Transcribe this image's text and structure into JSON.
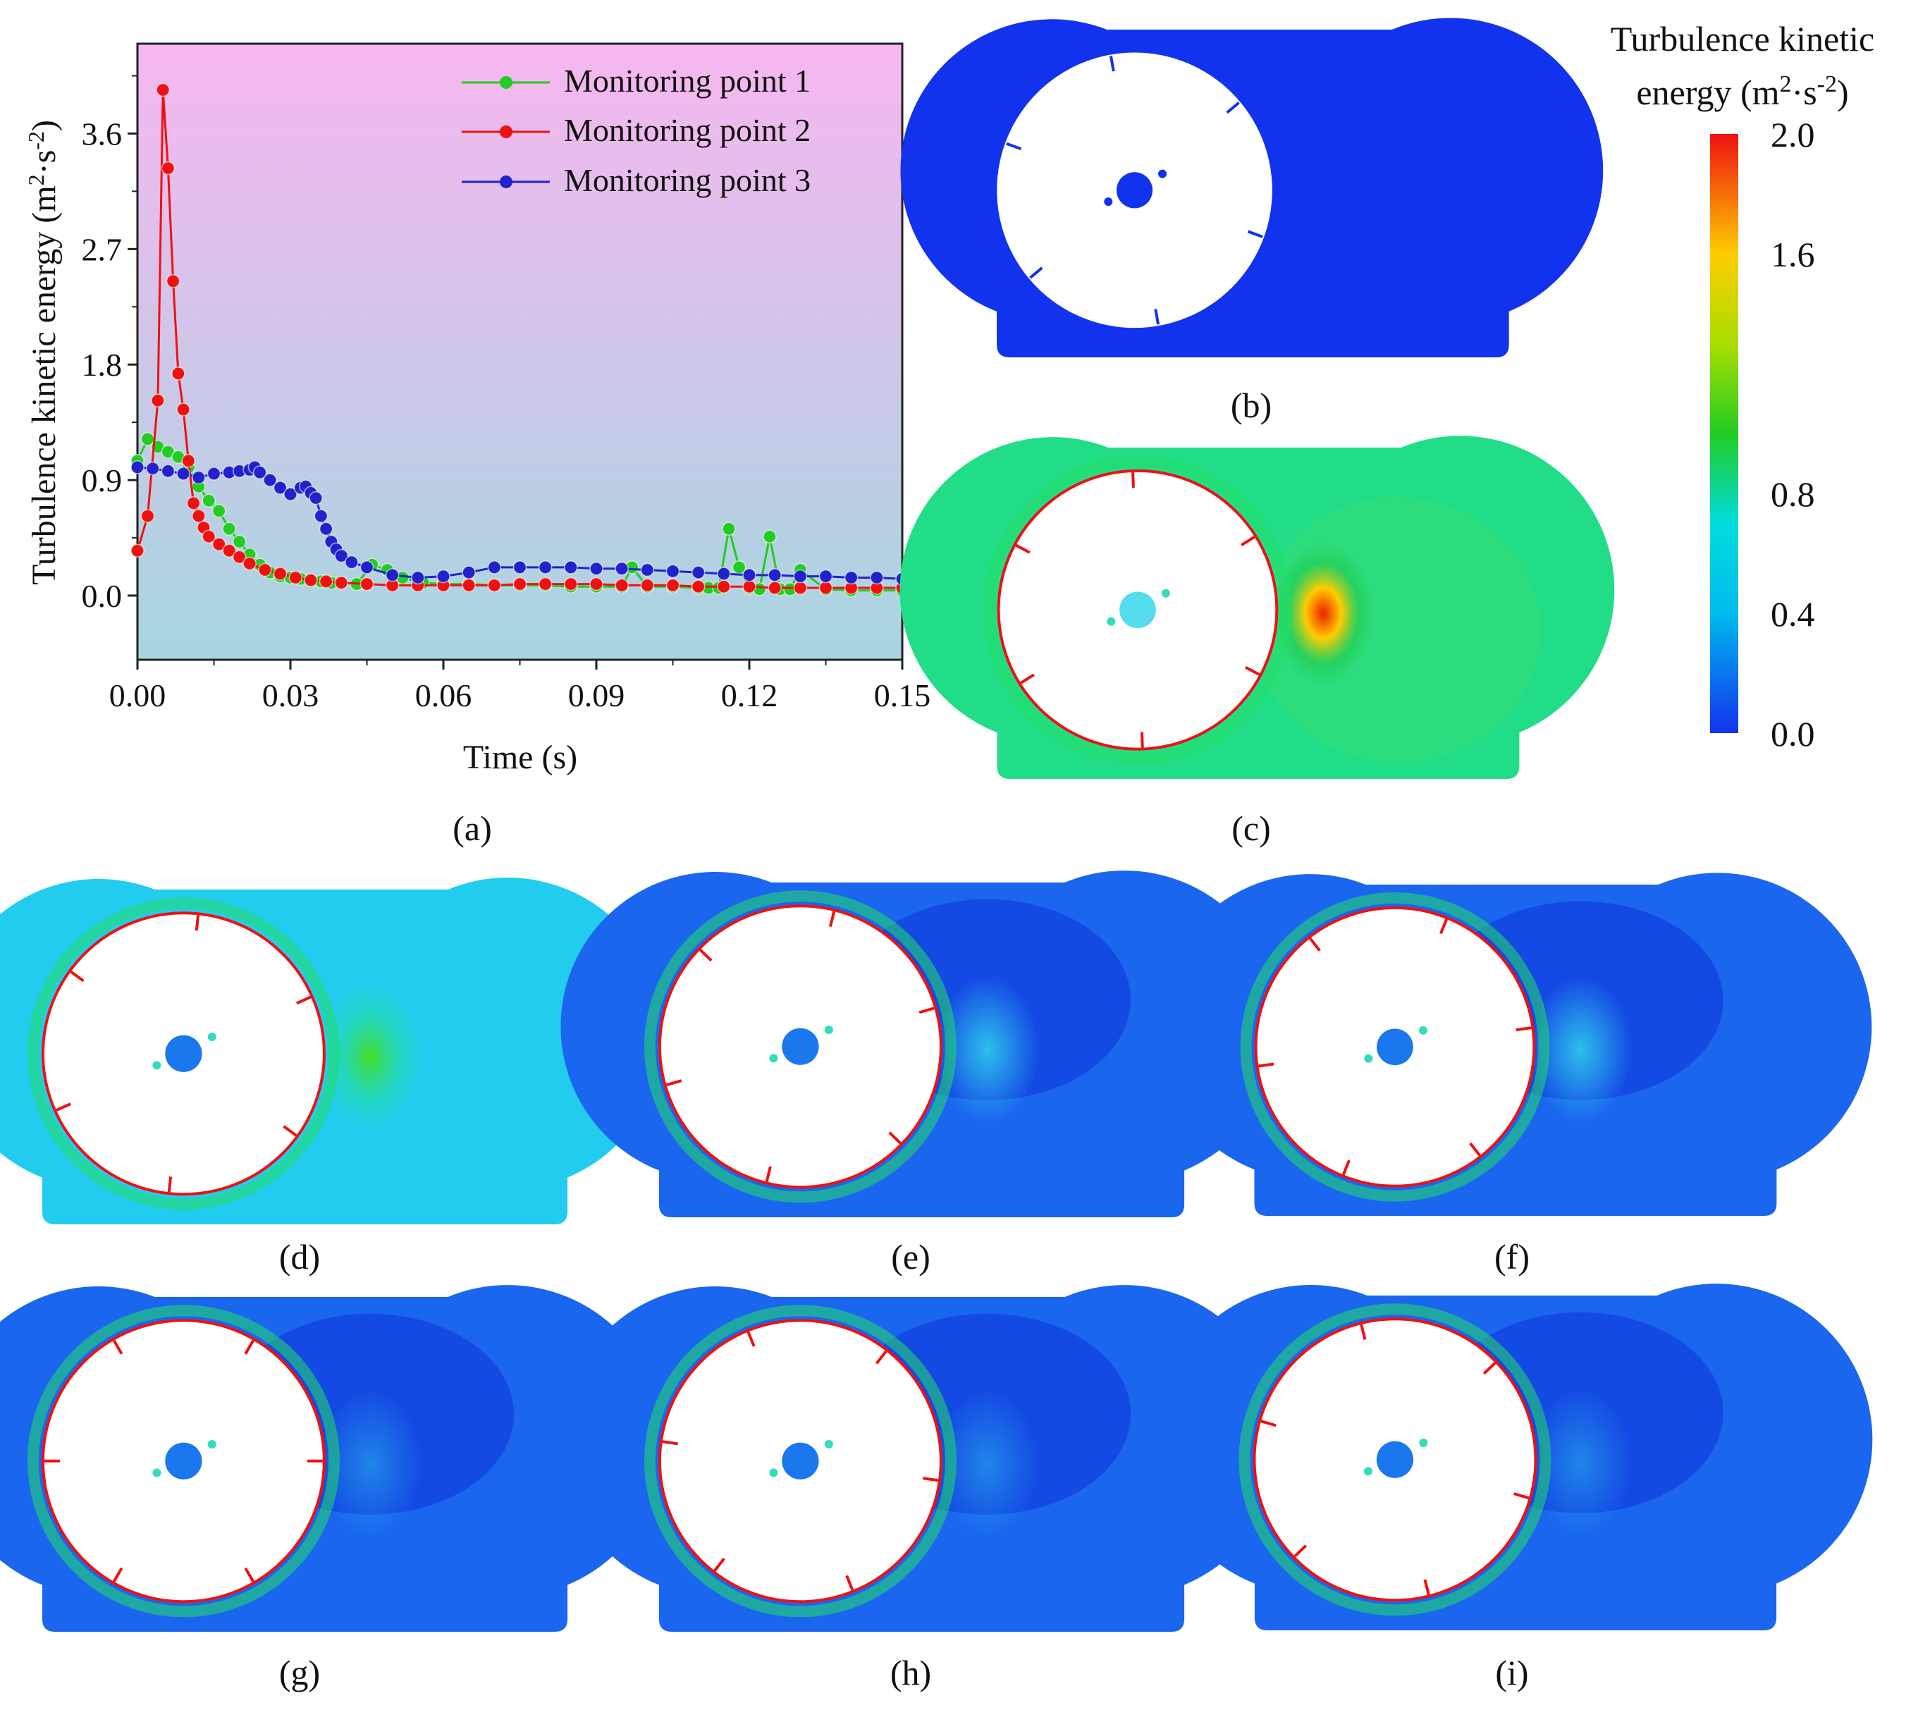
{
  "chart_data": {
    "type": "scatter",
    "panel_label": "(a)",
    "title": "",
    "xlabel": "Time (s)",
    "ylabel": "Turbulence  kinetic energy (m²·s⁻²)",
    "ylabel_parts": {
      "main": "Turbulence  kinetic energy (m",
      "sup1": "2",
      "mid": "·s",
      "sup2": "-2",
      "end": ")"
    },
    "xlim": [
      0.0,
      0.15
    ],
    "ylim": [
      -0.5,
      4.3
    ],
    "xticks": [
      0.0,
      0.03,
      0.06,
      0.09,
      0.12,
      0.15
    ],
    "xtick_labels": [
      "0.00",
      "0.03",
      "0.06",
      "0.09",
      "0.12",
      "0.15"
    ],
    "yticks": [
      0.0,
      0.9,
      1.8,
      2.7,
      3.6
    ],
    "ytick_labels": [
      "0.0",
      "0.9",
      "1.8",
      "2.7",
      "3.6"
    ],
    "legend_position": "top-right",
    "background_gradient": [
      "#f7b7f0",
      "#a7d6e0"
    ],
    "series": [
      {
        "name": "Monitoring point 1",
        "color": "#22cc22",
        "x": [
          0.0,
          0.002,
          0.004,
          0.006,
          0.008,
          0.01,
          0.012,
          0.014,
          0.016,
          0.018,
          0.02,
          0.022,
          0.024,
          0.026,
          0.028,
          0.03,
          0.032,
          0.034,
          0.036,
          0.038,
          0.04,
          0.043,
          0.046,
          0.049,
          0.052,
          0.056,
          0.06,
          0.065,
          0.07,
          0.075,
          0.08,
          0.085,
          0.09,
          0.095,
          0.097,
          0.1,
          0.105,
          0.11,
          0.112,
          0.114,
          0.116,
          0.118,
          0.12,
          0.122,
          0.124,
          0.126,
          0.128,
          0.13,
          0.135,
          0.14,
          0.145,
          0.15
        ],
        "values": [
          1.05,
          1.22,
          1.16,
          1.12,
          1.08,
          1.0,
          0.85,
          0.74,
          0.66,
          0.52,
          0.42,
          0.32,
          0.24,
          0.18,
          0.15,
          0.14,
          0.13,
          0.12,
          0.11,
          0.1,
          0.1,
          0.09,
          0.24,
          0.2,
          0.14,
          0.1,
          0.09,
          0.09,
          0.08,
          0.08,
          0.08,
          0.07,
          0.07,
          0.07,
          0.22,
          0.07,
          0.07,
          0.06,
          0.06,
          0.06,
          0.52,
          0.22,
          0.06,
          0.05,
          0.46,
          0.05,
          0.05,
          0.2,
          0.05,
          0.04,
          0.04,
          0.04
        ]
      },
      {
        "name": "Monitoring point 2",
        "color": "#ee1111",
        "x": [
          0.0,
          0.002,
          0.004,
          0.005,
          0.006,
          0.007,
          0.008,
          0.009,
          0.01,
          0.011,
          0.012,
          0.013,
          0.014,
          0.016,
          0.018,
          0.02,
          0.022,
          0.025,
          0.028,
          0.031,
          0.034,
          0.037,
          0.04,
          0.045,
          0.05,
          0.055,
          0.06,
          0.065,
          0.07,
          0.075,
          0.08,
          0.085,
          0.09,
          0.095,
          0.1,
          0.105,
          0.11,
          0.115,
          0.12,
          0.125,
          0.13,
          0.135,
          0.14,
          0.145,
          0.15
        ],
        "values": [
          0.35,
          0.62,
          1.52,
          3.94,
          3.33,
          2.45,
          1.73,
          1.45,
          1.05,
          0.72,
          0.62,
          0.53,
          0.46,
          0.4,
          0.35,
          0.3,
          0.25,
          0.2,
          0.17,
          0.14,
          0.12,
          0.11,
          0.1,
          0.09,
          0.08,
          0.08,
          0.08,
          0.08,
          0.08,
          0.09,
          0.09,
          0.09,
          0.09,
          0.08,
          0.08,
          0.08,
          0.07,
          0.07,
          0.07,
          0.06,
          0.06,
          0.06,
          0.06,
          0.06,
          0.06
        ]
      },
      {
        "name": "Monitoring point 3",
        "color": "#2222cc",
        "x": [
          0.0,
          0.003,
          0.006,
          0.009,
          0.012,
          0.015,
          0.018,
          0.02,
          0.022,
          0.023,
          0.024,
          0.026,
          0.028,
          0.03,
          0.032,
          0.033,
          0.034,
          0.035,
          0.036,
          0.037,
          0.038,
          0.039,
          0.04,
          0.042,
          0.045,
          0.05,
          0.055,
          0.06,
          0.065,
          0.07,
          0.075,
          0.08,
          0.085,
          0.09,
          0.095,
          0.1,
          0.105,
          0.11,
          0.115,
          0.12,
          0.125,
          0.13,
          0.135,
          0.14,
          0.145,
          0.15
        ],
        "values": [
          1.0,
          0.99,
          0.97,
          0.95,
          0.92,
          0.95,
          0.96,
          0.97,
          0.98,
          1.0,
          0.96,
          0.9,
          0.84,
          0.79,
          0.84,
          0.85,
          0.8,
          0.76,
          0.62,
          0.52,
          0.42,
          0.36,
          0.31,
          0.26,
          0.22,
          0.16,
          0.14,
          0.15,
          0.18,
          0.22,
          0.22,
          0.22,
          0.22,
          0.21,
          0.21,
          0.2,
          0.19,
          0.18,
          0.17,
          0.16,
          0.16,
          0.15,
          0.15,
          0.14,
          0.14,
          0.13
        ]
      }
    ]
  },
  "colorbar": {
    "title_line1": "Turbulence kinetic",
    "title_line2_main": "energy (m",
    "title_sup1": "2",
    "title_mid": "·s",
    "title_sup2": "-2",
    "title_end": ")",
    "ticks": [
      "2.0",
      "1.6",
      "0.8",
      "0.4",
      "0.0"
    ],
    "tick_values": [
      2.0,
      1.6,
      0.8,
      0.4,
      0.0
    ],
    "range": [
      0.0,
      2.0
    ],
    "colors": [
      "#ee1111",
      "#ffcc00",
      "#22cc22",
      "#00dddd",
      "#1133ee"
    ]
  },
  "contours": [
    {
      "label": "(b)",
      "stage": "initial",
      "wake": "none"
    },
    {
      "label": "(c)",
      "stage": "high",
      "wake": "strong"
    },
    {
      "label": "(d)",
      "stage": "mid",
      "wake": "green"
    },
    {
      "label": "(e)",
      "stage": "low",
      "wake": "weak"
    },
    {
      "label": "(f)",
      "stage": "low",
      "wake": "weak"
    },
    {
      "label": "(g)",
      "stage": "low",
      "wake": "faint"
    },
    {
      "label": "(h)",
      "stage": "low",
      "wake": "faint"
    },
    {
      "label": "(i)",
      "stage": "low",
      "wake": "faint"
    }
  ]
}
